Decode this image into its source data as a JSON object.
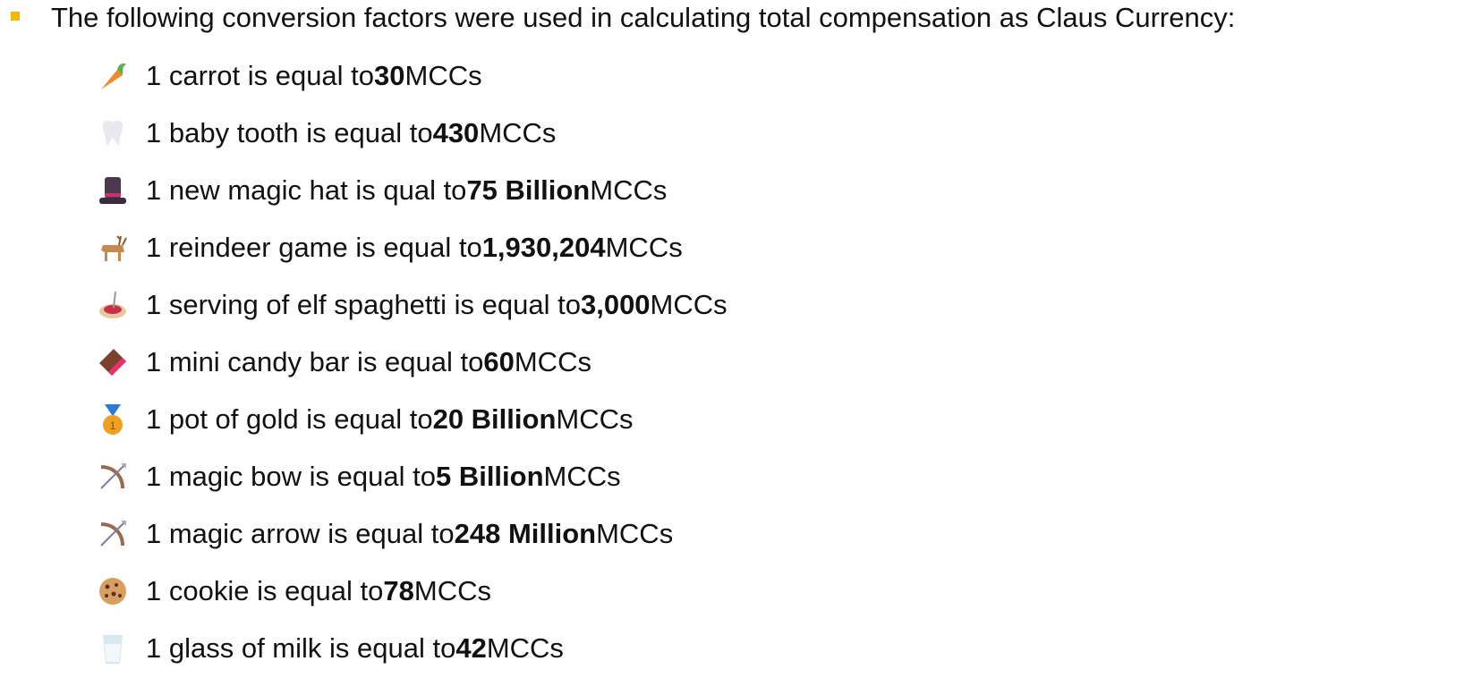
{
  "intro": "The following conversion factors were used in calculating total compensation as Claus Currency:",
  "items": [
    {
      "prefix": "1 carrot is equal to",
      "amount": "30",
      "unit": "MCCs"
    },
    {
      "prefix": "1 baby tooth is equal to",
      "amount": "430",
      "unit": "MCCs"
    },
    {
      "prefix": "1 new magic hat is qual to",
      "amount": "75 Billion",
      "unit": "MCCs"
    },
    {
      "prefix": "1 reindeer game is equal to",
      "amount": "1,930,204",
      "unit": "MCCs"
    },
    {
      "prefix": "1 serving of elf spaghetti is equal to",
      "amount": "3,000",
      "unit": "MCCs"
    },
    {
      "prefix": "1 mini candy bar is equal to",
      "amount": "60",
      "unit": "MCCs"
    },
    {
      "prefix": "1 pot of gold is equal to",
      "amount": "20 Billion",
      "unit": "MCCs"
    },
    {
      "prefix": "1 magic bow is equal to",
      "amount": "5 Billion",
      "unit": "MCCs"
    },
    {
      "prefix": "1 magic arrow is equal to",
      "amount": "248 Million",
      "unit": "MCCs"
    },
    {
      "prefix": "1 cookie is equal to",
      "amount": "78",
      "unit": "MCCs"
    },
    {
      "prefix": "1 glass of milk is equal to",
      "amount": "42",
      "unit": "MCCs"
    }
  ]
}
